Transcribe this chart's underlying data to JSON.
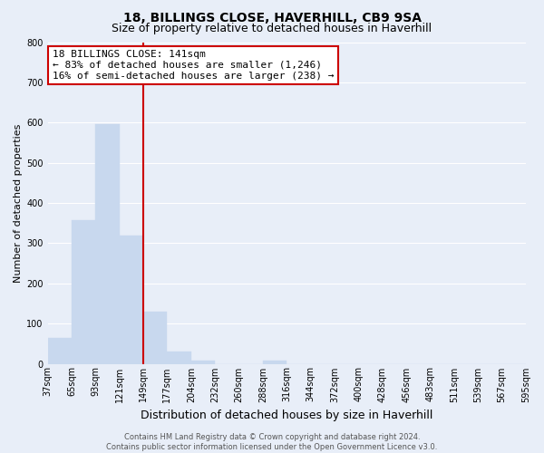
{
  "title": "18, BILLINGS CLOSE, HAVERHILL, CB9 9SA",
  "subtitle": "Size of property relative to detached houses in Haverhill",
  "xlabel": "Distribution of detached houses by size in Haverhill",
  "ylabel": "Number of detached properties",
  "bin_labels": [
    "37sqm",
    "65sqm",
    "93sqm",
    "121sqm",
    "149sqm",
    "177sqm",
    "204sqm",
    "232sqm",
    "260sqm",
    "288sqm",
    "316sqm",
    "344sqm",
    "372sqm",
    "400sqm",
    "428sqm",
    "456sqm",
    "483sqm",
    "511sqm",
    "539sqm",
    "567sqm",
    "595sqm"
  ],
  "bar_heights": [
    65,
    358,
    596,
    318,
    130,
    30,
    8,
    0,
    0,
    8,
    0,
    0,
    0,
    0,
    0,
    0,
    0,
    0,
    0,
    0
  ],
  "bar_color": "#c8d8ee",
  "vline_color": "#cc0000",
  "vline_pos": 4,
  "ylim": [
    0,
    800
  ],
  "yticks": [
    0,
    100,
    200,
    300,
    400,
    500,
    600,
    700,
    800
  ],
  "annotation_title": "18 BILLINGS CLOSE: 141sqm",
  "annotation_line1": "← 83% of detached houses are smaller (1,246)",
  "annotation_line2": "16% of semi-detached houses are larger (238) →",
  "annotation_box_facecolor": "#ffffff",
  "annotation_box_edgecolor": "#cc0000",
  "footer_line1": "Contains HM Land Registry data © Crown copyright and database right 2024.",
  "footer_line2": "Contains public sector information licensed under the Open Government Licence v3.0.",
  "bg_color": "#e8eef8",
  "plot_bg_color": "#e8eef8",
  "grid_color": "#ffffff",
  "title_fontsize": 10,
  "subtitle_fontsize": 9,
  "xlabel_fontsize": 9,
  "ylabel_fontsize": 8,
  "tick_fontsize": 7,
  "annotation_fontsize": 8,
  "footer_fontsize": 6
}
